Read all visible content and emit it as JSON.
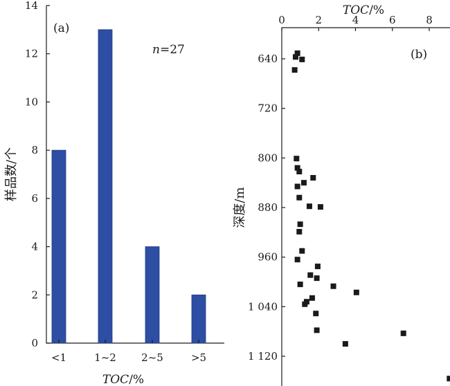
{
  "chart_data": [
    {
      "type": "bar",
      "panel_label": "(a)",
      "annotation": {
        "italic": "n",
        "rest": "=27"
      },
      "categories": [
        "<1",
        "1~2",
        "2~5",
        ">5"
      ],
      "values": [
        8,
        13,
        4,
        2
      ],
      "bar_color": "#2e4ea3",
      "ylabel": "样品数/个",
      "xlabel": {
        "italic": "TOC",
        "rest": "/%"
      },
      "ylim": [
        0,
        14
      ],
      "yticks": [
        "0",
        "2",
        "4",
        "6",
        "8",
        "10",
        "12",
        "14"
      ]
    },
    {
      "type": "scatter",
      "panel_label": "(b)",
      "xlabel": {
        "italic": "TOC",
        "rest": "/%"
      },
      "ylabel": "深度/m",
      "xlim": [
        0,
        9
      ],
      "ylim": [
        600,
        1160
      ],
      "y_inverted": true,
      "xaxis_position": "top",
      "xticks": [
        "0",
        "2",
        "4",
        "6",
        "8"
      ],
      "yticks": [
        "640",
        "720",
        "800",
        "880",
        "960",
        "1 040",
        "1 120"
      ],
      "marker_color": "#1a1a1a",
      "points": [
        {
          "x": 0.85,
          "y": 631
        },
        {
          "x": 0.75,
          "y": 637
        },
        {
          "x": 1.1,
          "y": 641
        },
        {
          "x": 0.7,
          "y": 658
        },
        {
          "x": 0.8,
          "y": 801
        },
        {
          "x": 0.85,
          "y": 816
        },
        {
          "x": 0.95,
          "y": 822
        },
        {
          "x": 1.7,
          "y": 832
        },
        {
          "x": 1.2,
          "y": 840
        },
        {
          "x": 0.85,
          "y": 846
        },
        {
          "x": 0.95,
          "y": 864
        },
        {
          "x": 1.5,
          "y": 878
        },
        {
          "x": 2.1,
          "y": 879
        },
        {
          "x": 1.0,
          "y": 907
        },
        {
          "x": 0.95,
          "y": 919
        },
        {
          "x": 1.1,
          "y": 950
        },
        {
          "x": 0.85,
          "y": 964
        },
        {
          "x": 1.95,
          "y": 975
        },
        {
          "x": 1.55,
          "y": 989
        },
        {
          "x": 1.9,
          "y": 994
        },
        {
          "x": 1.0,
          "y": 1004
        },
        {
          "x": 2.8,
          "y": 1007
        },
        {
          "x": 4.05,
          "y": 1017
        },
        {
          "x": 1.65,
          "y": 1026
        },
        {
          "x": 1.35,
          "y": 1032
        },
        {
          "x": 1.25,
          "y": 1036
        },
        {
          "x": 1.85,
          "y": 1051
        },
        {
          "x": 1.9,
          "y": 1078
        },
        {
          "x": 6.6,
          "y": 1083
        },
        {
          "x": 3.45,
          "y": 1100
        },
        {
          "x": 9.1,
          "y": 1156
        }
      ]
    }
  ]
}
